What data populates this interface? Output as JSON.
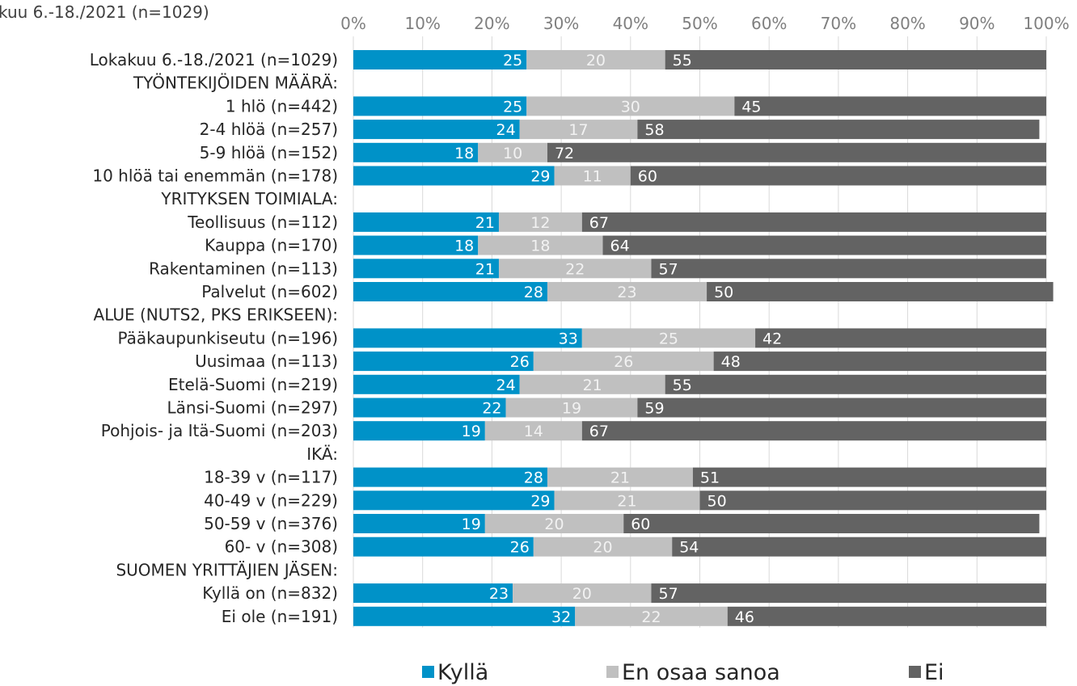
{
  "chart_data": {
    "type": "bar",
    "orientation": "horizontal",
    "stacked": true,
    "percent": true,
    "title": "kuu 6.-18./2021 (n=1029)",
    "xlim": [
      0,
      100
    ],
    "x_ticks": [
      "0%",
      "10%",
      "20%",
      "30%",
      "40%",
      "50%",
      "60%",
      "70%",
      "80%",
      "90%",
      "100%"
    ],
    "grid": true,
    "legend_position": "bottom",
    "rows": [
      {
        "label": "Lokakuu 6.-18./2021 (n=1029)",
        "values": [
          25,
          20,
          55
        ]
      },
      {
        "label": "TYÖNTEKIJÖIDEN MÄÄRÄ:",
        "values": null
      },
      {
        "label": "1 hlö (n=442)",
        "values": [
          25,
          30,
          45
        ]
      },
      {
        "label": "2-4 hlöä (n=257)",
        "values": [
          24,
          17,
          58
        ]
      },
      {
        "label": "5-9 hlöä (n=152)",
        "values": [
          18,
          10,
          72
        ]
      },
      {
        "label": "10 hlöä tai enemmän (n=178)",
        "values": [
          29,
          11,
          60
        ]
      },
      {
        "label": "YRITYKSEN TOIMIALA:",
        "values": null
      },
      {
        "label": "Teollisuus (n=112)",
        "values": [
          21,
          12,
          67
        ]
      },
      {
        "label": "Kauppa (n=170)",
        "values": [
          18,
          18,
          64
        ]
      },
      {
        "label": "Rakentaminen (n=113)",
        "values": [
          21,
          22,
          57
        ]
      },
      {
        "label": "Palvelut (n=602)",
        "values": [
          28,
          23,
          50
        ]
      },
      {
        "label": "ALUE (NUTS2, PKS ERIKSEEN):",
        "values": null
      },
      {
        "label": "Pääkaupunkiseutu (n=196)",
        "values": [
          33,
          25,
          42
        ]
      },
      {
        "label": "Uusimaa (n=113)",
        "values": [
          26,
          26,
          48
        ]
      },
      {
        "label": "Etelä-Suomi (n=219)",
        "values": [
          24,
          21,
          55
        ]
      },
      {
        "label": "Länsi-Suomi (n=297)",
        "values": [
          22,
          19,
          59
        ]
      },
      {
        "label": "Pohjois- ja Itä-Suomi (n=203)",
        "values": [
          19,
          14,
          67
        ]
      },
      {
        "label": "IKÄ:",
        "values": null
      },
      {
        "label": "18-39 v (n=117)",
        "values": [
          28,
          21,
          51
        ]
      },
      {
        "label": "40-49 v (n=229)",
        "values": [
          29,
          21,
          50
        ]
      },
      {
        "label": "50-59 v (n=376)",
        "values": [
          19,
          20,
          60
        ]
      },
      {
        "label": "60- v (n=308)",
        "values": [
          26,
          20,
          54
        ]
      },
      {
        "label": "SUOMEN YRITTÄJIEN JÄSEN:",
        "values": null
      },
      {
        "label": "Kyllä on (n=832)",
        "values": [
          23,
          20,
          57
        ]
      },
      {
        "label": "Ei ole (n=191)",
        "values": [
          32,
          22,
          46
        ]
      }
    ],
    "series": [
      {
        "name": "Kyllä",
        "color": "#0092c8"
      },
      {
        "name": "En osaa sanoa",
        "color": "#c0c0c0"
      },
      {
        "name": "Ei",
        "color": "#636363"
      }
    ]
  }
}
